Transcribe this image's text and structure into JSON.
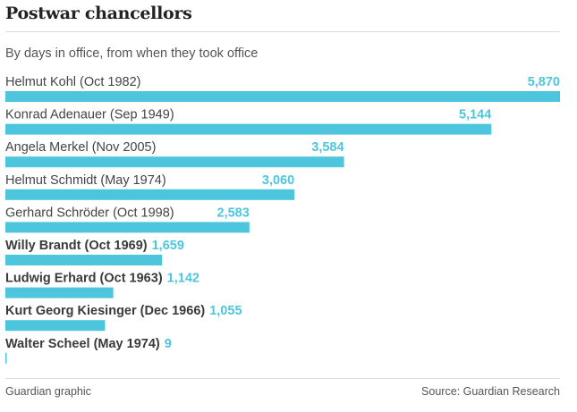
{
  "title": "Postwar chancellors",
  "footer": {
    "left": "Guardian graphic",
    "right": "Source: Guardian Research"
  },
  "colors": {
    "bar": "#4dc6dd",
    "value_text": "#4dc6dd"
  },
  "chart_data": {
    "type": "bar",
    "orientation": "horizontal",
    "title": "Postwar chancellors",
    "subtitle": "By days in office, from when they took office",
    "categories": [
      "Helmut Kohl (Oct 1982)",
      "Konrad Adenauer (Sep 1949)",
      "Angela Merkel (Nov 2005)",
      "Helmut Schmidt (May 1974)",
      "Gerhard Schröder (Oct 1998)",
      "Willy Brandt (Oct 1969)",
      "Ludwig Erhard (Oct 1963)",
      "Kurt Georg Kiesinger (Dec 1966)",
      "Walter Scheel (May 1974)"
    ],
    "values": [
      5870,
      5144,
      3584,
      3060,
      2583,
      1659,
      1142,
      1055,
      9
    ],
    "value_labels": [
      "5,870",
      "5,144",
      "3,584",
      "3,060",
      "2,583",
      "1,659",
      "1,142",
      "1,055",
      "9"
    ],
    "xlim": [
      0,
      5870
    ],
    "grid": false,
    "legend": "none"
  }
}
